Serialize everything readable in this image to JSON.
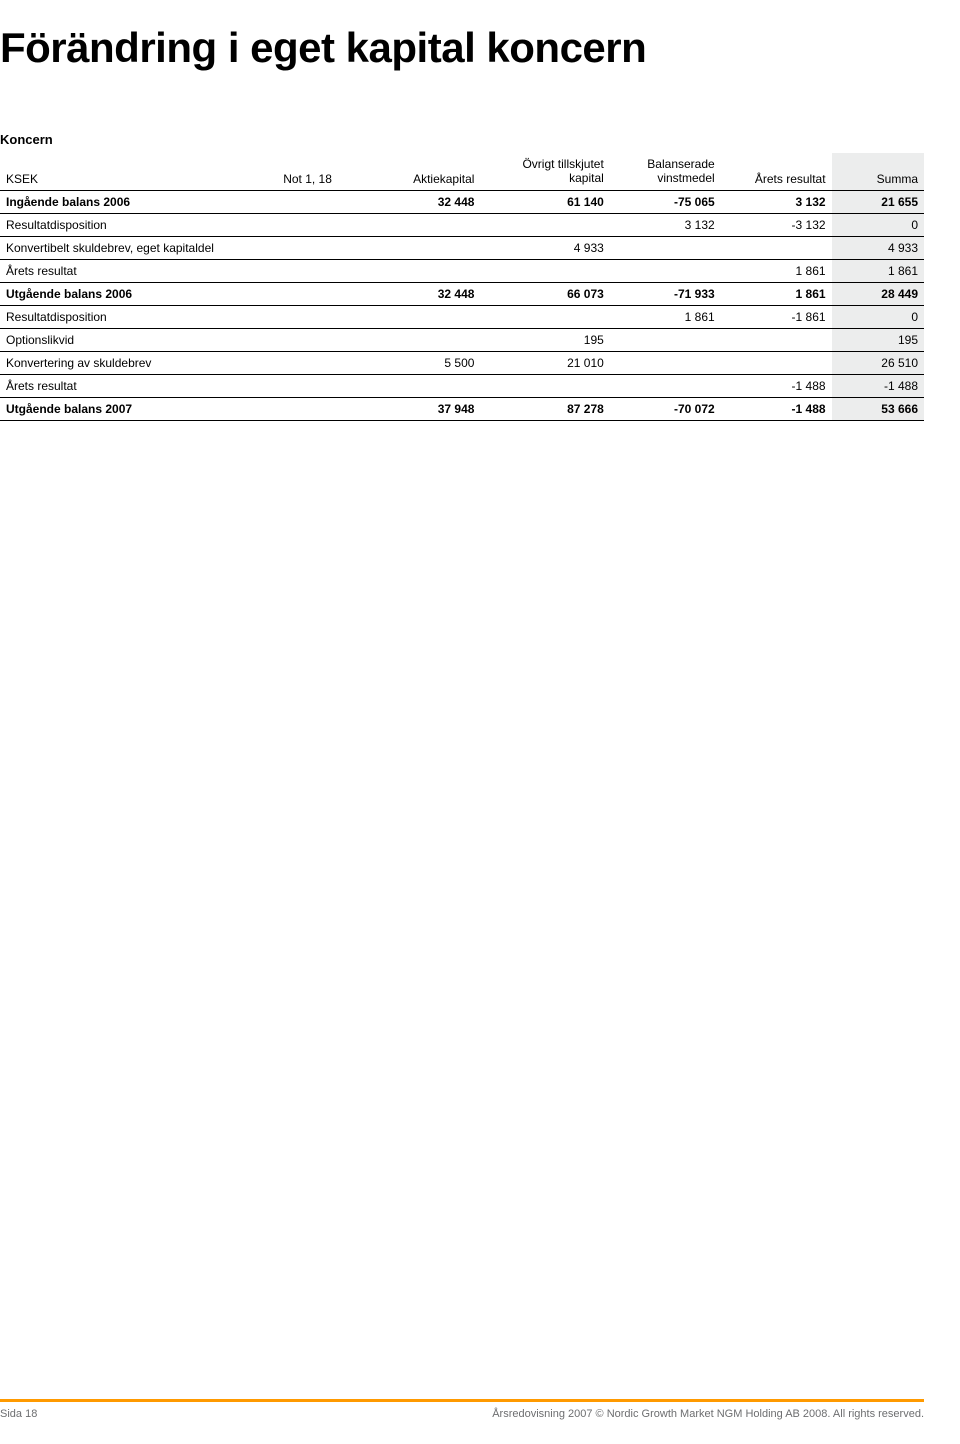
{
  "title": "Förändring i eget kapital koncern",
  "subhead": "Koncern",
  "table": {
    "columns": {
      "label": "KSEK",
      "note": "Not 1, 18",
      "aktiekapital": "Aktiekapital",
      "ovrigt_l1": "Övrigt tillskjutet",
      "ovrigt_l2": "kapital",
      "balanserade_l1": "Balanserade",
      "balanserade_l2": "vinstmedel",
      "arets_resultat": "Årets resultat",
      "summa": "Summa"
    },
    "rows": [
      {
        "label": "Ingående balans 2006",
        "bold": true,
        "aktiekapital": "32 448",
        "ovrigt": "61 140",
        "balanserade": "-75 065",
        "arets": "3 132",
        "summa": "21 655"
      },
      {
        "label": "Resultatdisposition",
        "aktiekapital": "",
        "ovrigt": "",
        "balanserade": "3 132",
        "arets": "-3 132",
        "summa": "0"
      },
      {
        "label": "Konvertibelt skuldebrev, eget kapitaldel",
        "aktiekapital": "",
        "ovrigt": "4 933",
        "balanserade": "",
        "arets": "",
        "summa": "4 933"
      },
      {
        "label": "Årets resultat",
        "aktiekapital": "",
        "ovrigt": "",
        "balanserade": "",
        "arets": "1 861",
        "summa": "1 861"
      },
      {
        "label": "Utgående balans 2006",
        "bold": true,
        "aktiekapital": "32 448",
        "ovrigt": "66 073",
        "balanserade": "-71 933",
        "arets": "1 861",
        "summa": "28 449"
      },
      {
        "label": "Resultatdisposition",
        "aktiekapital": "",
        "ovrigt": "",
        "balanserade": "1 861",
        "arets": "-1 861",
        "summa": "0"
      },
      {
        "label": "Optionslikvid",
        "aktiekapital": "",
        "ovrigt": "195",
        "balanserade": "",
        "arets": "",
        "summa": "195"
      },
      {
        "label": "Konvertering av skuldebrev",
        "aktiekapital": "5 500",
        "ovrigt": "21 010",
        "balanserade": "",
        "arets": "",
        "summa": "26 510"
      },
      {
        "label": "Årets resultat",
        "aktiekapital": "",
        "ovrigt": "",
        "balanserade": "",
        "arets": "-1 488",
        "summa": "-1 488"
      },
      {
        "label": "Utgående balans 2007",
        "bold": true,
        "aktiekapital": "37 948",
        "ovrigt": "87 278",
        "balanserade": "-70 072",
        "arets": "-1 488",
        "summa": "53 666"
      }
    ]
  },
  "footer": {
    "left": "Sida 18",
    "right": "Årsredovisning 2007 © Nordic Growth Market NGM Holding AB 2008. All rights reserved."
  },
  "colors": {
    "summa_bg": "#eceded",
    "footer_border": "#ff9a00",
    "footer_text": "#6d6e70",
    "text": "#000000",
    "background": "#ffffff"
  }
}
